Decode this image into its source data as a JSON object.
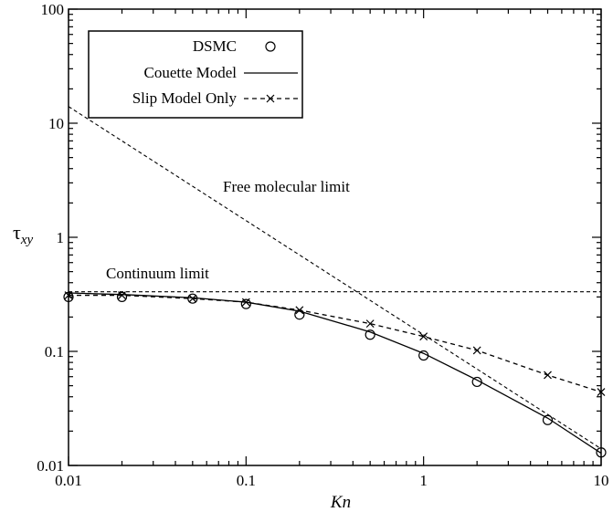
{
  "chart_data": {
    "type": "line",
    "xlabel": "Kn",
    "ylabel_main": "τ",
    "ylabel_sub": "xy",
    "x_scale": "log",
    "y_scale": "log",
    "xlim": [
      0.01,
      10
    ],
    "ylim": [
      0.01,
      100
    ],
    "x_ticks": [
      0.01,
      0.1,
      1,
      10
    ],
    "x_tick_labels": [
      "0.01",
      "0.1",
      "1",
      "10"
    ],
    "y_ticks": [
      0.01,
      0.1,
      1,
      10,
      100
    ],
    "y_tick_labels": [
      "0.01",
      "0.1",
      "1",
      "10",
      "100"
    ],
    "grid": false,
    "legend_position": "top-left",
    "series": [
      {
        "name": "DSMC",
        "style": "markers",
        "marker": "circle",
        "x": [
          0.01,
          0.02,
          0.05,
          0.1,
          0.2,
          0.5,
          1,
          2,
          5,
          10
        ],
        "y": [
          0.3,
          0.3,
          0.29,
          0.26,
          0.21,
          0.14,
          0.092,
          0.054,
          0.025,
          0.013
        ]
      },
      {
        "name": "Couette Model",
        "style": "solid",
        "x": [
          0.01,
          0.02,
          0.05,
          0.1,
          0.2,
          0.5,
          1,
          2,
          5,
          10
        ],
        "y": [
          0.325,
          0.315,
          0.295,
          0.27,
          0.225,
          0.148,
          0.096,
          0.056,
          0.026,
          0.0128
        ]
      },
      {
        "name": "Slip Model Only",
        "style": "dashed",
        "marker": "x",
        "x": [
          0.01,
          0.02,
          0.05,
          0.1,
          0.2,
          0.5,
          1,
          2,
          5,
          10
        ],
        "y": [
          0.31,
          0.31,
          0.29,
          0.27,
          0.23,
          0.175,
          0.135,
          0.102,
          0.062,
          0.044
        ]
      }
    ],
    "reference_lines": [
      {
        "label": "Free molecular limit",
        "x": [
          0.01,
          10
        ],
        "y": [
          14,
          0.014
        ]
      },
      {
        "label": "Continuum limit",
        "x": [
          0.01,
          10
        ],
        "y": [
          0.333,
          0.333
        ]
      }
    ]
  },
  "legend": {
    "dsmc": "DSMC",
    "couette": "Couette Model",
    "slip": "Slip Model Only"
  },
  "annotations": {
    "free_molecular": "Free molecular limit",
    "continuum": "Continuum limit"
  }
}
